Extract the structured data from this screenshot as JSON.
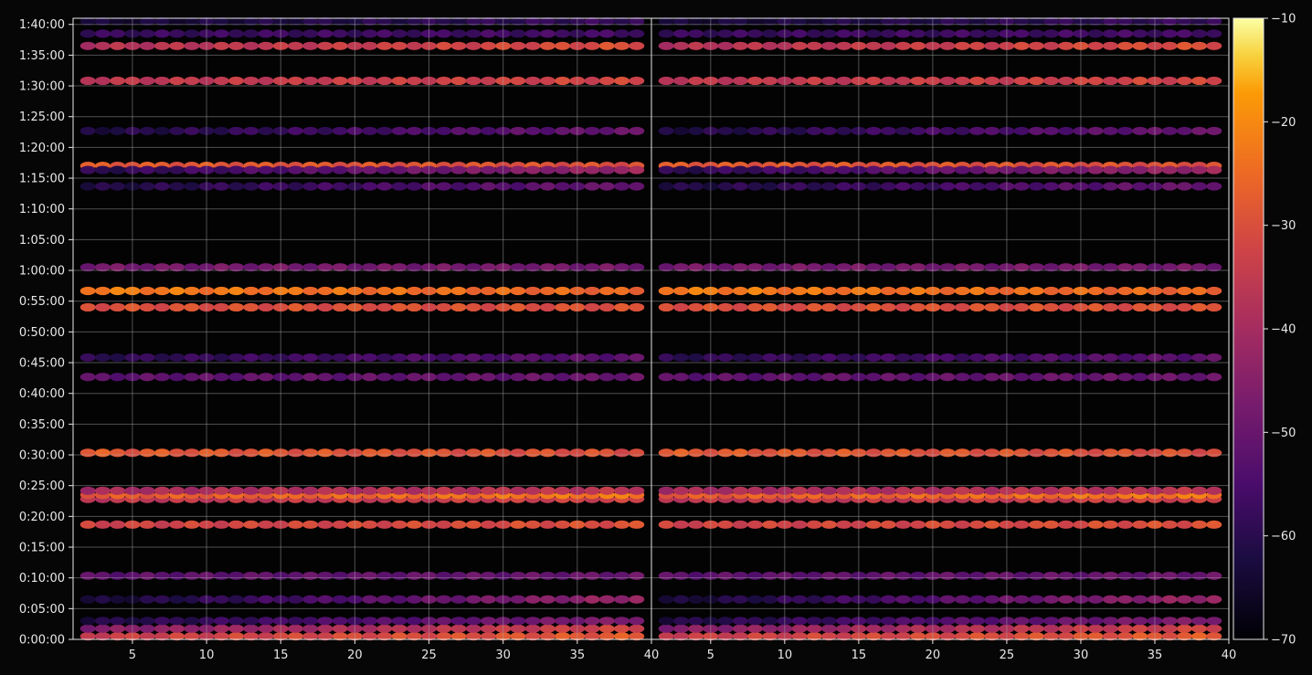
{
  "chart_data": {
    "type": "heatmap",
    "title": "",
    "xlabel": "",
    "ylabel": "",
    "panels": [
      {
        "name": "",
        "xlim": [
          1,
          40
        ],
        "xticks": [
          "5",
          "10",
          "15",
          "20",
          "25",
          "30",
          "35",
          "40"
        ]
      },
      {
        "name": "",
        "xlim": [
          1,
          40
        ],
        "xticks": [
          "5",
          "10",
          "15",
          "20",
          "25",
          "30",
          "35",
          "40"
        ]
      }
    ],
    "ylim_seconds": [
      0,
      6060
    ],
    "yticks": [
      "0:00:00",
      "0:05:00",
      "0:10:00",
      "0:15:00",
      "0:20:00",
      "0:25:00",
      "0:30:00",
      "0:35:00",
      "0:40:00",
      "0:45:00",
      "0:50:00",
      "0:55:00",
      "1:00:00",
      "1:05:00",
      "1:10:00",
      "1:15:00",
      "1:20:00",
      "1:25:00",
      "1:30:00",
      "1:35:00",
      "1:40:00"
    ],
    "grid": true,
    "colormap": "inferno",
    "colorbar": {
      "range": [
        -70,
        -10
      ],
      "ticks": [
        "−10",
        "−20",
        "−30",
        "−40",
        "−50",
        "−60",
        "−70"
      ],
      "placement": "right"
    },
    "bands": [
      {
        "time": "0:00:30",
        "level_start": -34,
        "level_end": -28
      },
      {
        "time": "0:01:45",
        "level_start": -46,
        "level_end": -32
      },
      {
        "time": "0:03:00",
        "level_start": -62,
        "level_end": -46
      },
      {
        "time": "0:06:30",
        "level_start": -64,
        "level_end": -42
      },
      {
        "time": "0:10:20",
        "level_start": -52,
        "level_end": -50
      },
      {
        "time": "0:18:40",
        "level_start": -33,
        "level_end": -30
      },
      {
        "time": "0:22:50",
        "level_start": -36,
        "level_end": -33
      },
      {
        "time": "0:23:30",
        "level_start": -28,
        "level_end": -22
      },
      {
        "time": "0:24:10",
        "level_start": -40,
        "level_end": -36
      },
      {
        "time": "0:30:20",
        "level_start": -28,
        "level_end": -30
      },
      {
        "time": "0:42:40",
        "level_start": -52,
        "level_end": -50
      },
      {
        "time": "0:45:50",
        "level_start": -60,
        "level_end": -52
      },
      {
        "time": "0:54:00",
        "level_start": -30,
        "level_end": -30
      },
      {
        "time": "0:56:40",
        "level_start": -22,
        "level_end": -26
      },
      {
        "time": "1:00:30",
        "level_start": -48,
        "level_end": -48
      },
      {
        "time": "1:13:40",
        "level_start": -62,
        "level_end": -50
      },
      {
        "time": "1:17:00",
        "level_start": -28,
        "level_end": -30
      },
      {
        "time": "1:16:20",
        "level_start": -60,
        "level_end": -42
      },
      {
        "time": "1:22:40",
        "level_start": -62,
        "level_end": -50
      },
      {
        "time": "1:30:50",
        "level_start": -36,
        "level_end": -32
      },
      {
        "time": "1:36:30",
        "level_start": -38,
        "level_end": -30
      },
      {
        "time": "1:38:30",
        "level_start": -58,
        "level_end": -56
      },
      {
        "time": "1:40:30",
        "level_start": -64,
        "level_end": -58
      }
    ]
  }
}
